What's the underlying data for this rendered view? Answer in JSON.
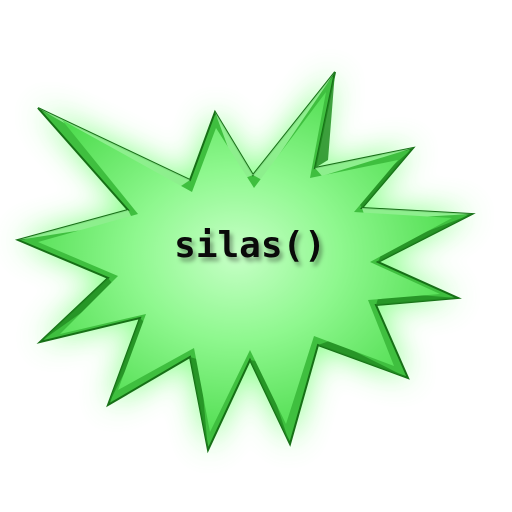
{
  "logo": {
    "text": "silas()",
    "colors": {
      "fill_light": "#b8ffb8",
      "fill_mid": "#66f066",
      "fill_dark": "#2fae2f",
      "bevel_dark": "#1f8a1f",
      "bevel_light": "#c8ffc8",
      "outline": "#167016",
      "glow": "#6dff6d"
    }
  }
}
